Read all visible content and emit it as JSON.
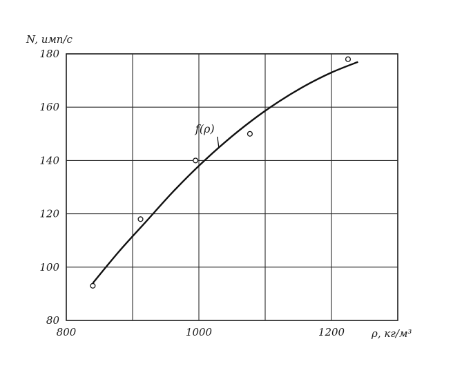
{
  "chart_data": {
    "type": "line",
    "xlabel": "ρ, кг/м³",
    "ylabel": "N, имп/с",
    "xlim": [
      800,
      1300
    ],
    "ylim": [
      80,
      180
    ],
    "x_ticks": [
      800,
      1000,
      1200
    ],
    "y_ticks": [
      80,
      100,
      120,
      140,
      160,
      180
    ],
    "grid": true,
    "series": [
      {
        "name": "f(ρ)",
        "kind": "fitted-curve",
        "x": [
          840,
          880,
          920,
          960,
          1000,
          1040,
          1080,
          1120,
          1160,
          1200,
          1240
        ],
        "y": [
          94,
          106,
          117,
          128,
          138,
          147,
          155,
          162,
          168,
          173,
          177
        ]
      },
      {
        "kind": "measured-points",
        "marker": "open-circle",
        "x": [
          840,
          912,
          995,
          1077,
          1225
        ],
        "y": [
          93,
          118,
          140,
          150,
          178
        ]
      }
    ],
    "annotations": [
      {
        "text": "f(ρ)",
        "x": 1005,
        "y": 151,
        "arrow_to": {
          "x": 1030,
          "y": 145
        }
      }
    ]
  }
}
